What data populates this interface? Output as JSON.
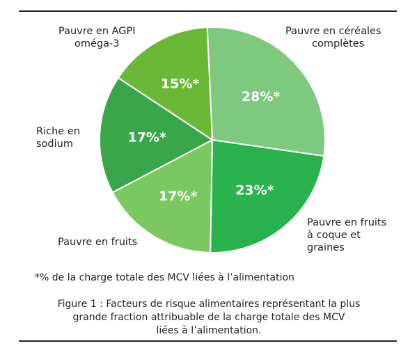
{
  "chart_data": {
    "type": "pie",
    "slices": [
      {
        "label": "Pauvre en céréales complètes",
        "value": 28,
        "value_label": "28%*",
        "color": "#7fc97f"
      },
      {
        "label": "Pauvre en fruits à coque et graines",
        "value": 23,
        "value_label": "23%*",
        "color": "#2ab24f"
      },
      {
        "label": "Pauvre en fruits",
        "value": 17,
        "value_label": "17%*",
        "color": "#7cc860"
      },
      {
        "label": "Riche en sodium",
        "value": 17,
        "value_label": "17%*",
        "color": "#3aa64a"
      },
      {
        "label": "Pauvre en AGPI oméga-3",
        "value": 15,
        "value_label": "15%*",
        "color": "#6bb836"
      }
    ]
  },
  "labels": {
    "cereales": [
      "Pauvre en céréales",
      "complètes"
    ],
    "noix": [
      "Pauvre en fruits",
      "à coque et",
      "graines"
    ],
    "fruits": [
      "Pauvre en fruits"
    ],
    "sodium": [
      "Riche en",
      "sodium"
    ],
    "agpi": [
      "Pauvre en AGPI",
      "oméga-3"
    ]
  },
  "footnote": "*% de la charge totale des MCV liées à l’alimentation",
  "caption": [
    "Figure 1 : Facteurs de risque alimentaires représentant la plus",
    "grande fraction attribuable de la charge totale des MCV",
    "liées à l’alimentation."
  ]
}
